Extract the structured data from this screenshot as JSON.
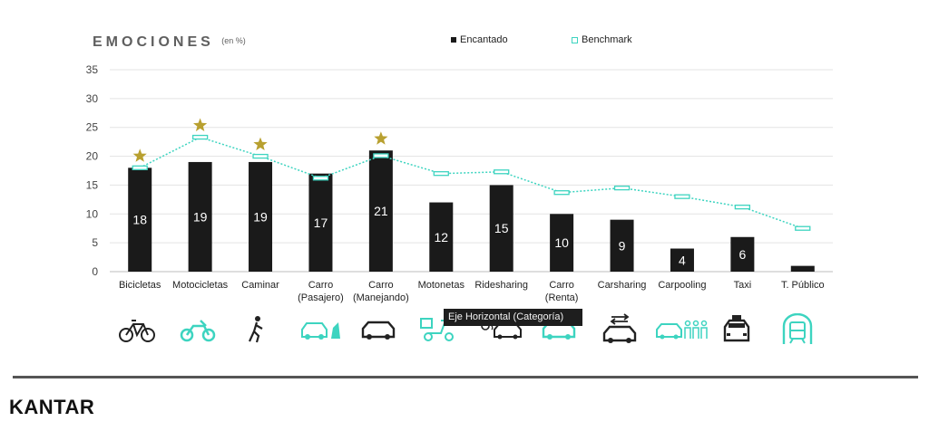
{
  "title": {
    "main": "EMOCIONES",
    "unit": "(en %)"
  },
  "legend": {
    "series_a": "Encantado",
    "series_b": "Benchmark"
  },
  "tooltip": "Eje Horizontal (Categoría)",
  "brand": "KANTAR",
  "colors": {
    "bar": "#1a1a1a",
    "benchmark": "#3dd4c0",
    "star": "#b8a030",
    "icon_dark": "#222222",
    "icon_teal": "#3dd4c0"
  },
  "chart_data": {
    "type": "bar",
    "title": "EMOCIONES",
    "ylabel": "",
    "xlabel": "",
    "ylim": [
      0,
      35
    ],
    "yticks": [
      "0",
      "5",
      "10",
      "15",
      "20",
      "25",
      "30",
      "35"
    ],
    "grid": true,
    "legend_position": "top-center",
    "categories": [
      [
        "Bicicletas"
      ],
      [
        "Motocicletas"
      ],
      [
        "Caminar"
      ],
      [
        "Carro",
        "(Pasajero)"
      ],
      [
        "Carro",
        "(Manejando)"
      ],
      [
        "Motonetas"
      ],
      [
        "Ridesharing"
      ],
      [
        "Carro",
        "(Renta)"
      ],
      [
        "Carsharing"
      ],
      [
        "Carpooling"
      ],
      [
        "Taxi"
      ],
      [
        "T. Público"
      ]
    ],
    "series": [
      {
        "name": "Encantado",
        "kind": "bar",
        "values": [
          18,
          19,
          19,
          17,
          21,
          12,
          15,
          10,
          9,
          4,
          6,
          1
        ],
        "labels": [
          "18",
          "19",
          "19",
          "17",
          "21",
          "12",
          "15",
          "10",
          "9",
          "4",
          "6",
          ""
        ]
      },
      {
        "name": "Benchmark",
        "kind": "line-marker",
        "values": [
          18,
          23.3,
          20,
          16.2,
          20.1,
          17,
          17.3,
          13.7,
          14.5,
          13,
          11.2,
          7.5
        ]
      }
    ],
    "starred": [
      true,
      true,
      true,
      false,
      true,
      false,
      false,
      false,
      false,
      false,
      false,
      false
    ]
  },
  "icons": [
    {
      "name": "bicycle-icon",
      "color": "dark"
    },
    {
      "name": "motorcycle-icon",
      "color": "teal"
    },
    {
      "name": "walking-person-icon",
      "color": "dark"
    },
    {
      "name": "passenger-car-icon",
      "color": "teal"
    },
    {
      "name": "car-icon",
      "color": "dark"
    },
    {
      "name": "scooter-icon",
      "color": "teal"
    },
    {
      "name": "ridesharing-icon",
      "color": "dark"
    },
    {
      "name": "rental-car-icon",
      "color": "teal"
    },
    {
      "name": "carsharing-icon",
      "color": "dark"
    },
    {
      "name": "carpooling-icon",
      "color": "teal"
    },
    {
      "name": "taxi-icon",
      "color": "dark"
    },
    {
      "name": "public-transport-icon",
      "color": "teal"
    }
  ]
}
